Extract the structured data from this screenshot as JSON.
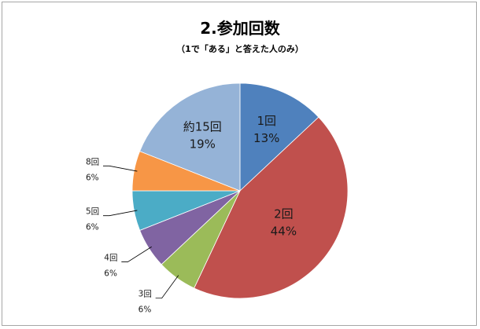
{
  "chart_data": {
    "type": "pie",
    "title": "2.参加回数",
    "subtitle": "（1で「ある」と答えた人のみ）",
    "legend": "none",
    "slices": [
      {
        "name": "1回",
        "value": 13,
        "label": "13%",
        "color": "#4f81bd"
      },
      {
        "name": "2回",
        "value": 44,
        "label": "44%",
        "color": "#c0504d"
      },
      {
        "name": "3回",
        "value": 6,
        "label": "6%",
        "color": "#9bbb59"
      },
      {
        "name": "4回",
        "value": 6,
        "label": "6%",
        "color": "#8064a2"
      },
      {
        "name": "5回",
        "value": 6,
        "label": "6%",
        "color": "#4bacc6"
      },
      {
        "name": "8回",
        "value": 6,
        "label": "6%",
        "color": "#f79646"
      },
      {
        "name": "約15回",
        "value": 19,
        "label": "19%",
        "color": "#95b3d7"
      }
    ]
  }
}
